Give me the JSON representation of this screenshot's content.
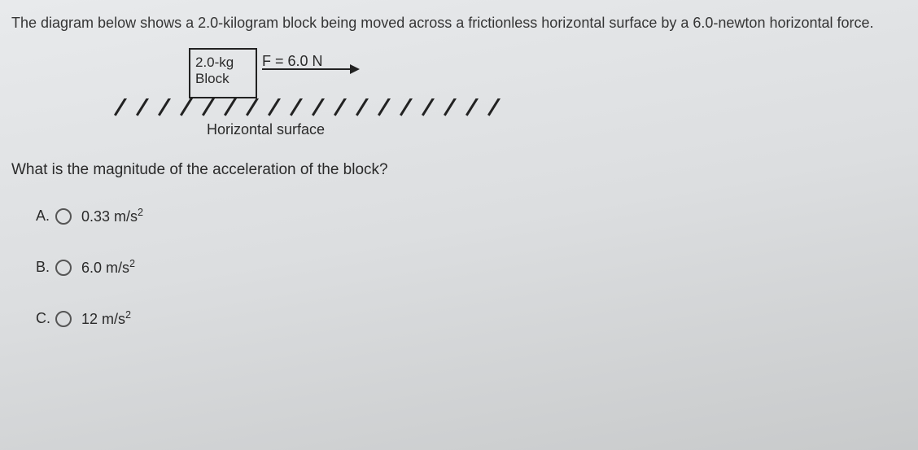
{
  "intro": "The diagram below shows a 2.0-kilogram block being moved across a frictionless horizontal surface by a 6.0-newton horizontal force.",
  "diagram": {
    "block_line1": "2.0-kg",
    "block_line2": "Block",
    "force_label": "F = 6.0 N",
    "surface_label": "Horizontal surface",
    "hatch_count": 18,
    "colors": {
      "stroke": "#222222",
      "text": "#2a2a2a",
      "bg_gradient_top": "#e8eaec",
      "bg_gradient_bottom": "#c8cacb"
    }
  },
  "question": "What is the magnitude of the acceleration of the block?",
  "options": [
    {
      "letter": "A.",
      "value": "0.33",
      "unit_base": "m/s",
      "unit_exp": "2"
    },
    {
      "letter": "B.",
      "value": "6.0",
      "unit_base": "m/s",
      "unit_exp": "2"
    },
    {
      "letter": "C.",
      "value": "12",
      "unit_base": "m/s",
      "unit_exp": "2"
    }
  ]
}
